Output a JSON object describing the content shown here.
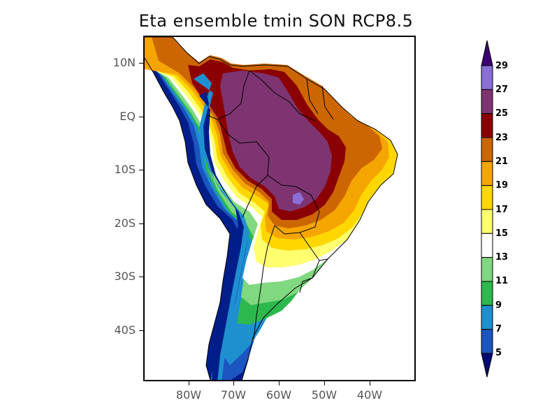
{
  "title": "Eta ensemble tmin SON RCP8.5",
  "latitude_labels": [
    "10N",
    "EQ",
    "10S",
    "20S",
    "30S",
    "40S"
  ],
  "longitude_labels": [
    "80W",
    "70W",
    "60W",
    "50W",
    "40W"
  ],
  "colorbar": {
    "labels": [
      "29",
      "27",
      "25",
      "23",
      "21",
      "19",
      "17",
      "15",
      "13",
      "11",
      "9",
      "7",
      "5"
    ],
    "colors": [
      "#8a6fd8",
      "#7e3470",
      "#8b0000",
      "#cc6600",
      "#f5a500",
      "#ffd700",
      "#ffff70",
      "#ffffff",
      "#80d880",
      "#2db84d",
      "#1e90d0",
      "#1a55c0"
    ],
    "over_color": "#3a0070",
    "under_color": "#000a70"
  },
  "palette": {
    "c29": "#8a6fd8",
    "c27": "#7e3470",
    "c25": "#8b0000",
    "c23": "#cc6600",
    "c21": "#f5a500",
    "c19": "#ffd700",
    "c17": "#ffff70",
    "c15": "#ffffff",
    "c13": "#80d880",
    "c11": "#2db84d",
    "c9": "#1e90d0",
    "c7": "#1a55c0",
    "c5": "#001e8a",
    "border": "#000000"
  }
}
